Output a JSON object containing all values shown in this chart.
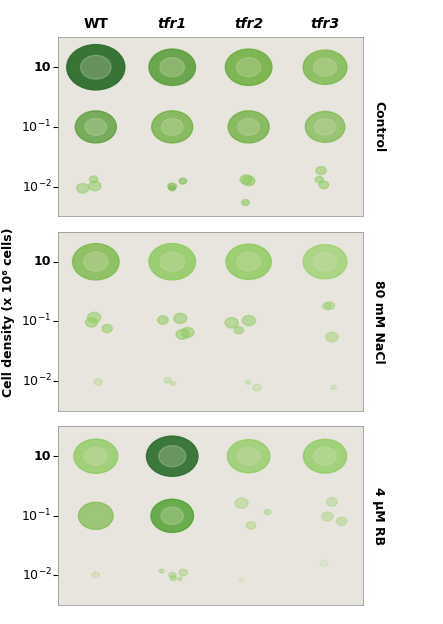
{
  "title_labels": [
    "WT",
    "tfr1",
    "tfr2",
    "tfr3"
  ],
  "title_italic": [
    false,
    true,
    true,
    true
  ],
  "condition_labels": [
    "Control",
    "80 mM NaCl",
    "4 μM RB"
  ],
  "ylabel": "Cell density (x 10⁶ cells)",
  "fig_bg": "#ffffff",
  "spot_data": {
    "control": {
      "row0": {
        "sizes": [
          1400,
          900,
          900,
          800
        ],
        "colors": [
          "#2d6e2d",
          "#5a9e3a",
          "#6aae3a",
          "#7ab84a"
        ],
        "alphas": [
          0.95,
          0.88,
          0.85,
          0.82
        ]
      },
      "row1": {
        "sizes": [
          700,
          700,
          700,
          650
        ],
        "colors": [
          "#5a9e3a",
          "#6aae3a",
          "#6aae3a",
          "#7ab84a"
        ],
        "alphas": [
          0.8,
          0.75,
          0.75,
          0.72
        ]
      },
      "row2": {
        "sizes": [
          200,
          250,
          300,
          250
        ],
        "colors": [
          "#8aca5a",
          "#7ab84a",
          "#8aca5a",
          "#8aca5a"
        ],
        "alphas": [
          0.55,
          0.6,
          0.62,
          0.58
        ]
      }
    },
    "nacl": {
      "row0": {
        "sizes": [
          900,
          900,
          850,
          800
        ],
        "colors": [
          "#7ab84a",
          "#8aca5a",
          "#8aca5a",
          "#9ad06a"
        ],
        "alphas": [
          0.8,
          0.82,
          0.8,
          0.75
        ]
      },
      "row1": {
        "sizes": [
          300,
          350,
          300,
          280
        ],
        "colors": [
          "#8aca5a",
          "#8aca5a",
          "#8aca5a",
          "#9ad06a"
        ],
        "alphas": [
          0.55,
          0.58,
          0.55,
          0.5
        ]
      },
      "row2": {
        "sizes": [
          50,
          60,
          60,
          50
        ],
        "colors": [
          "#9ad06a",
          "#9ad06a",
          "#9ad06a",
          "#9ad06a"
        ],
        "alphas": [
          0.35,
          0.38,
          0.35,
          0.32
        ]
      }
    },
    "rb": {
      "row0": {
        "sizes": [
          800,
          1100,
          750,
          780
        ],
        "colors": [
          "#8aca5a",
          "#2d6e2d",
          "#8aca5a",
          "#8aca5a"
        ],
        "alphas": [
          0.75,
          0.92,
          0.72,
          0.74
        ]
      },
      "row1": {
        "sizes": [
          500,
          750,
          200,
          200
        ],
        "colors": [
          "#7ab84a",
          "#4a9e2a",
          "#9ad06a",
          "#9ad06a"
        ],
        "alphas": [
          0.68,
          0.8,
          0.45,
          0.42
        ]
      },
      "row2": {
        "sizes": [
          50,
          150,
          30,
          30
        ],
        "colors": [
          "#9ad06a",
          "#8aca5a",
          "#aade7a",
          "#aade7a"
        ],
        "alphas": [
          0.3,
          0.45,
          0.25,
          0.22
        ]
      }
    }
  }
}
